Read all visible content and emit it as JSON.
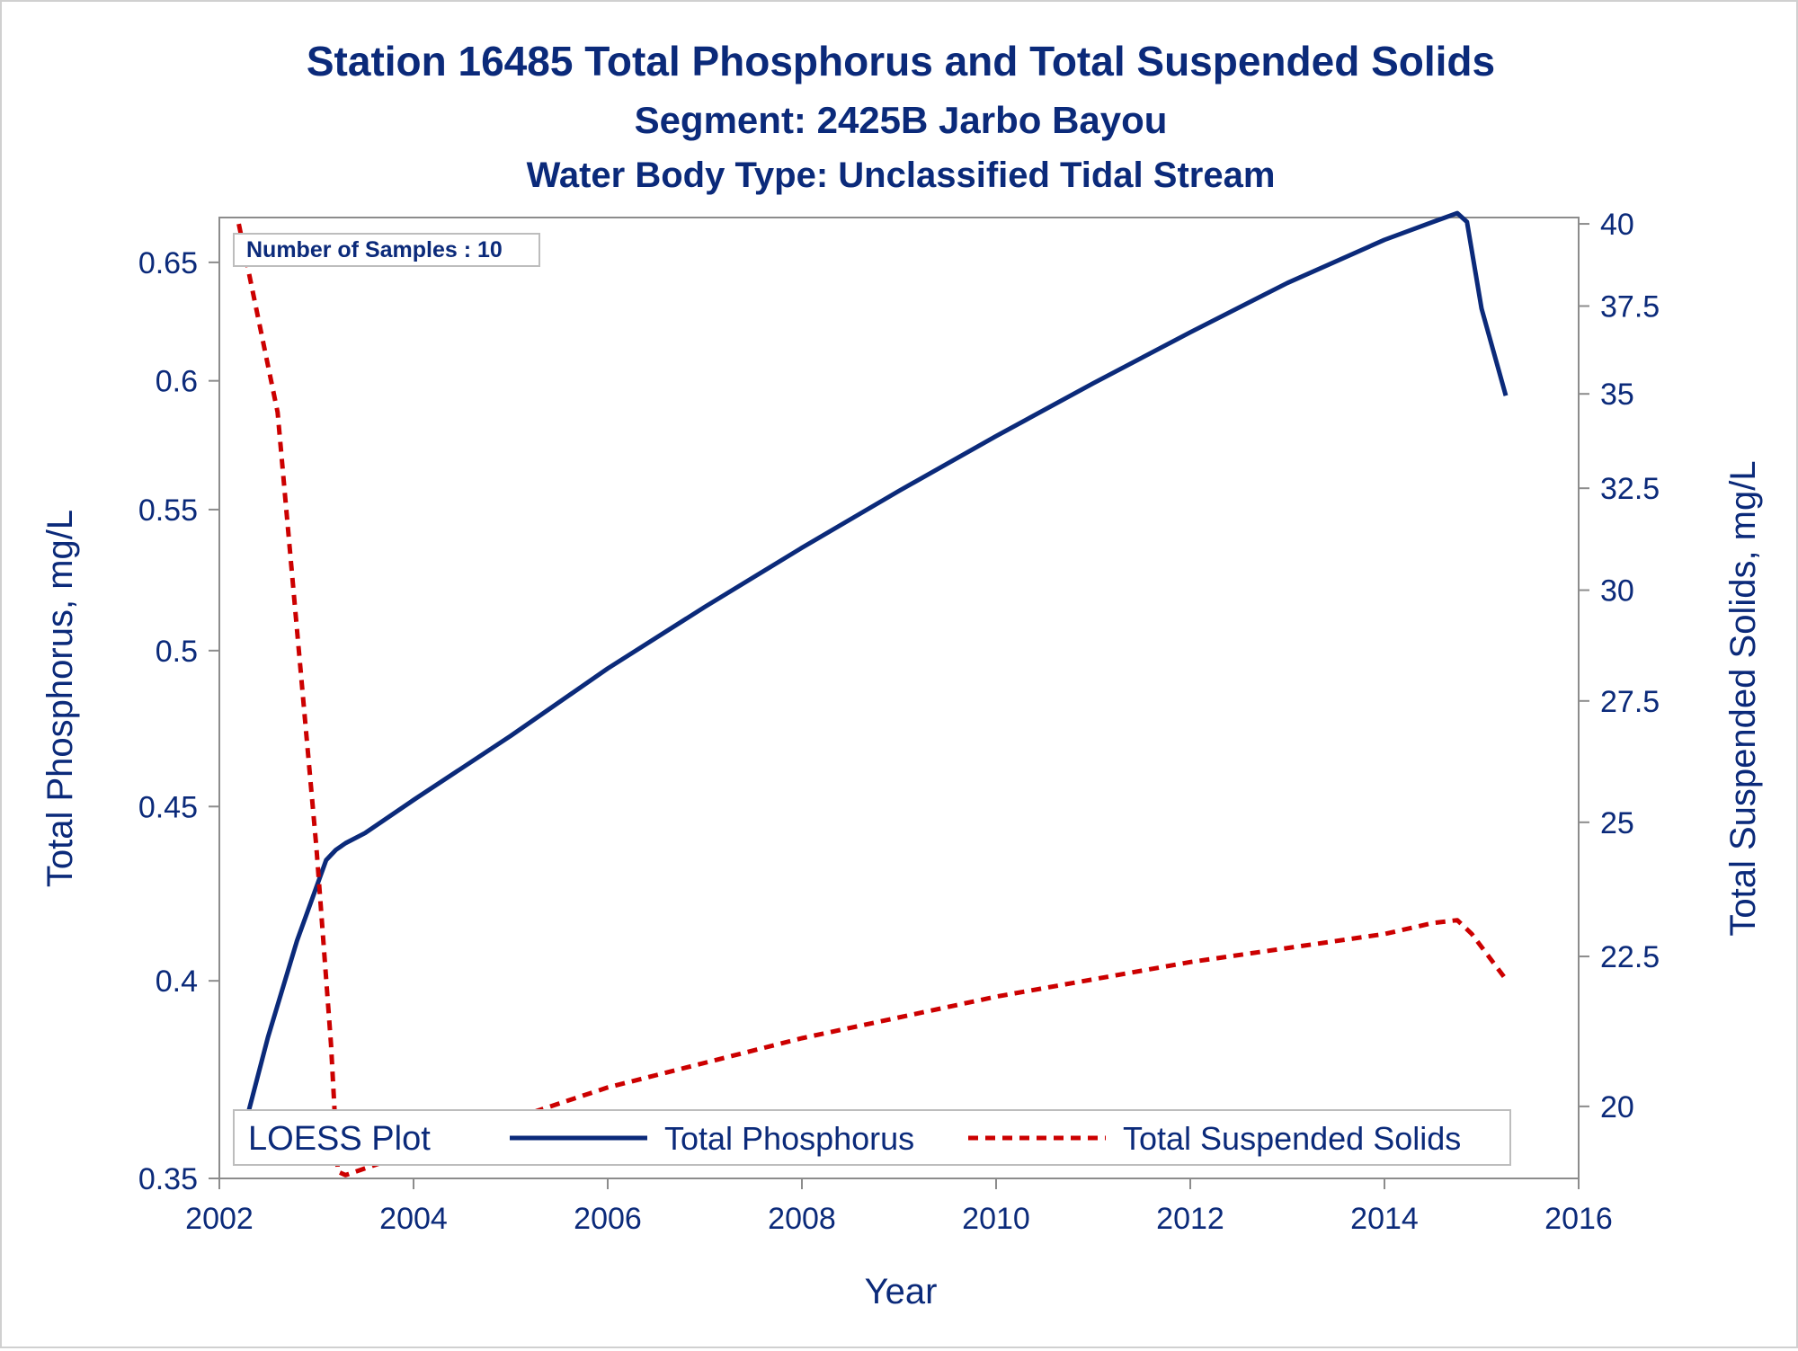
{
  "chart_data": {
    "type": "line",
    "title": "Station 16485  Total Phosphorus and Total Suspended Solids",
    "subtitle": "Segment: 2425B  Jarbo Bayou",
    "subtitle2": "Water Body Type: Unclassified Tidal Stream",
    "xlabel": "Year",
    "ylabel_left": "Total Phosphorus, mg/L",
    "ylabel_right": "Total Suspended Solids, mg/L",
    "xlim": [
      2002,
      2016
    ],
    "ylim_left": [
      0.35,
      0.67
    ],
    "ylim_right": [
      18.9,
      40.2
    ],
    "log_scale": true,
    "x_ticks": [
      2002,
      2004,
      2006,
      2008,
      2010,
      2012,
      2014,
      2016
    ],
    "x_tick_labels": [
      "2002",
      "2004",
      "2006",
      "2008",
      "2010",
      "2012",
      "2014",
      "2016"
    ],
    "y_left_ticks": [
      0.35,
      0.4,
      0.45,
      0.5,
      0.55,
      0.6,
      0.65
    ],
    "y_left_tick_labels": [
      "0.35",
      "0.4",
      "0.45",
      "0.5",
      "0.55",
      "0.6",
      "0.65"
    ],
    "y_right_ticks": [
      20,
      22.5,
      25,
      27.5,
      30,
      32.5,
      35,
      37.5,
      40
    ],
    "y_right_tick_labels": [
      "20",
      "22.5",
      "25",
      "27.5",
      "30",
      "32.5",
      "35",
      "37.5",
      "40"
    ],
    "annotation": "Number of Samples : 10",
    "legend": {
      "title": "LOESS Plot",
      "entries": [
        "Total Phosphorus",
        "Total Suspended Solids"
      ],
      "placement": "bottom inside"
    },
    "series": [
      {
        "name": "Total Phosphorus",
        "axis": "left",
        "color": "#0b2a7a",
        "style": "solid",
        "x": [
          2002.2,
          2002.5,
          2002.8,
          2003.1,
          2003.2,
          2003.3,
          2003.5,
          2004.0,
          2005.0,
          2006.0,
          2007.0,
          2008.0,
          2009.0,
          2010.0,
          2011.0,
          2012.0,
          2013.0,
          2014.0,
          2014.5,
          2014.75,
          2014.85,
          2015.0,
          2015.25
        ],
        "values": [
          0.357,
          0.385,
          0.411,
          0.434,
          0.437,
          0.439,
          0.442,
          0.452,
          0.472,
          0.494,
          0.515,
          0.536,
          0.557,
          0.578,
          0.599,
          0.62,
          0.641,
          0.66,
          0.668,
          0.672,
          0.668,
          0.63,
          0.594
        ]
      },
      {
        "name": "Total Suspended Solids",
        "axis": "right",
        "color": "#cc0000",
        "style": "dashed",
        "x": [
          2002.2,
          2002.6,
          2003.0,
          2003.15,
          2003.22,
          2003.3,
          2004.0,
          2006.0,
          2008.0,
          2010.0,
          2012.0,
          2014.0,
          2014.5,
          2014.75,
          2014.9,
          2015.25
        ],
        "values": [
          40.0,
          34.5,
          24.5,
          21.0,
          19.0,
          18.95,
          19.3,
          20.3,
          21.1,
          21.8,
          22.4,
          22.9,
          23.1,
          23.15,
          22.9,
          22.1
        ]
      }
    ]
  }
}
